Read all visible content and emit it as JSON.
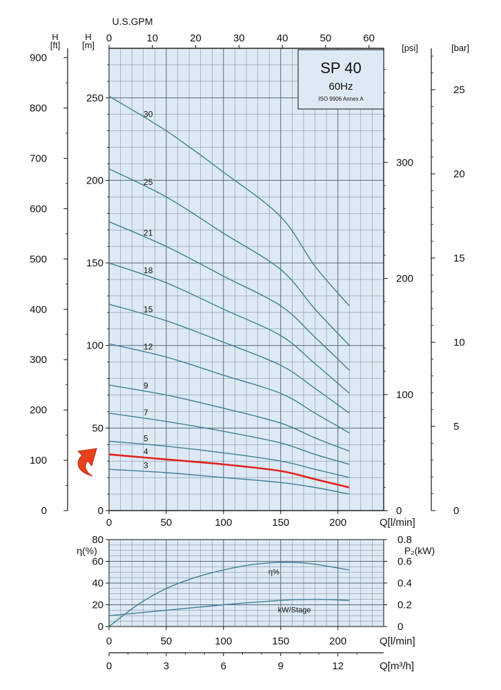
{
  "colors": {
    "plot_bg": "#dde9f4",
    "grid": "#46596a",
    "curve": "#3f7f92",
    "highlight": "#e0211c",
    "box_bg": "#dde9f4"
  },
  "info_box": {
    "model": "SP 40",
    "frequency": "60Hz",
    "standard": "ISO 9906 Annex A"
  },
  "chart_data": [
    {
      "type": "line",
      "name_id": "head-chart",
      "x_label": "Q[l/min]",
      "x_ticks": [
        0,
        50,
        100,
        150,
        200
      ],
      "xlim": [
        0,
        240
      ],
      "top_axis": {
        "label": "U.S.GPM",
        "ticks": [
          0,
          10,
          20,
          30,
          40,
          50,
          60
        ]
      },
      "y_label": "H\n[m]",
      "ylim": [
        0,
        280
      ],
      "y_ticks": [
        0,
        50,
        100,
        150,
        200,
        250
      ],
      "y_ft_axis": {
        "label": "H\n[ft]",
        "ticks": [
          0,
          100,
          200,
          300,
          400,
          500,
          600,
          700,
          800,
          900
        ]
      },
      "psi_axis": {
        "label": "[psi]",
        "ticks": [
          0,
          100,
          200,
          300
        ]
      },
      "bar_axis": {
        "label": "[bar]",
        "ticks": [
          0,
          5,
          10,
          15,
          20,
          25
        ]
      },
      "grid": true,
      "highlighted_series": "4",
      "series": [
        {
          "name": "30",
          "x": [
            0,
            50,
            100,
            150,
            180,
            210
          ],
          "y": [
            251,
            230,
            205,
            178,
            148,
            124
          ]
        },
        {
          "name": "25",
          "x": [
            0,
            50,
            100,
            150,
            180,
            210
          ],
          "y": [
            207,
            190,
            168,
            146,
            122,
            100
          ]
        },
        {
          "name": "21",
          "x": [
            0,
            50,
            100,
            150,
            180,
            210
          ],
          "y": [
            175,
            160,
            142,
            124,
            105,
            85
          ]
        },
        {
          "name": "18",
          "x": [
            0,
            50,
            100,
            150,
            180,
            210
          ],
          "y": [
            150,
            138,
            122,
            106,
            89,
            71
          ]
        },
        {
          "name": "15",
          "x": [
            0,
            50,
            100,
            150,
            180,
            210
          ],
          "y": [
            125,
            115,
            102,
            88,
            74,
            59
          ]
        },
        {
          "name": "12",
          "x": [
            0,
            50,
            100,
            150,
            180,
            210
          ],
          "y": [
            101,
            93,
            82,
            71,
            59,
            47
          ]
        },
        {
          "name": "9",
          "x": [
            0,
            50,
            100,
            150,
            180,
            210
          ],
          "y": [
            76,
            70,
            62,
            53,
            44,
            36
          ]
        },
        {
          "name": "7",
          "x": [
            0,
            50,
            100,
            150,
            180,
            210
          ],
          "y": [
            59,
            54,
            48,
            41,
            34,
            28
          ]
        },
        {
          "name": "5",
          "x": [
            0,
            50,
            100,
            150,
            180,
            210
          ],
          "y": [
            42,
            39,
            35,
            30,
            25,
            20
          ]
        },
        {
          "name": "4",
          "x": [
            0,
            50,
            100,
            150,
            180,
            210
          ],
          "y": [
            34,
            31,
            28,
            24,
            19,
            14
          ]
        },
        {
          "name": "3",
          "x": [
            0,
            50,
            100,
            150,
            180,
            210
          ],
          "y": [
            25,
            23,
            20,
            17,
            14,
            10
          ]
        }
      ]
    },
    {
      "type": "line",
      "name_id": "efficiency-power-chart",
      "x_label": "Q[l/min]",
      "x_ticks": [
        0,
        50,
        100,
        150,
        200
      ],
      "xlim": [
        0,
        240
      ],
      "second_x_axis": {
        "label": "Q[m³/h]",
        "ticks": [
          0,
          3,
          6,
          9,
          12
        ]
      },
      "y_label": "η(%)",
      "ylim": [
        0,
        80
      ],
      "y_ticks": [
        0,
        20,
        40,
        60,
        80
      ],
      "right_axis": {
        "label": "P₂(kW)",
        "ticks": [
          0,
          0.2,
          0.4,
          0.6,
          0.8
        ],
        "lim": [
          0,
          0.8
        ]
      },
      "grid": true,
      "series": [
        {
          "name": "η%",
          "axis": "left",
          "x": [
            0,
            25,
            50,
            75,
            100,
            125,
            150,
            175,
            210
          ],
          "y": [
            0,
            20,
            35,
            45,
            52,
            57,
            59,
            58,
            52
          ]
        },
        {
          "name": "kW/Stage",
          "axis": "right",
          "x": [
            0,
            50,
            100,
            150,
            180,
            210
          ],
          "y": [
            0.1,
            0.15,
            0.2,
            0.24,
            0.25,
            0.24
          ]
        }
      ]
    }
  ]
}
